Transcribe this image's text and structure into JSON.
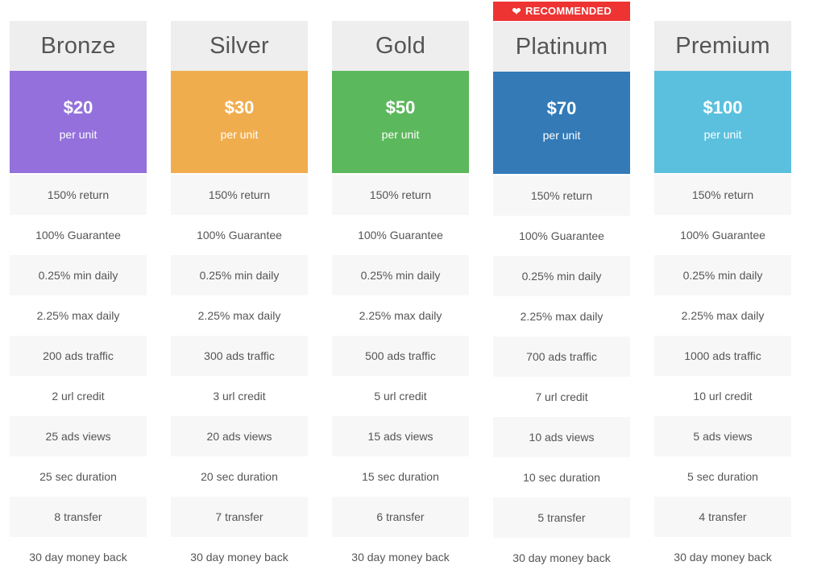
{
  "badge": {
    "icon": "heart-icon",
    "label": "RECOMMENDED"
  },
  "colors": {
    "header_bg": "#eeeeee",
    "badge": "#ee3333",
    "bronze": "#9370db",
    "silver": "#f0ad4e",
    "gold": "#5cb85c",
    "platinum": "#337ab7",
    "premium": "#5bc0de"
  },
  "plans": [
    {
      "name": "Bronze",
      "price": "$20",
      "unit": "per unit",
      "features": [
        "150% return",
        "100% Guarantee",
        "0.25% min daily",
        "2.25% max daily",
        "200 ads traffic",
        "2 url credit",
        "25 ads views",
        "25 sec duration",
        "8 transfer",
        "30 day money back"
      ]
    },
    {
      "name": "Silver",
      "price": "$30",
      "unit": "per unit",
      "features": [
        "150% return",
        "100% Guarantee",
        "0.25% min daily",
        "2.25% max daily",
        "300 ads traffic",
        "3 url credit",
        "20 ads views",
        "20 sec duration",
        "7 transfer",
        "30 day money back"
      ]
    },
    {
      "name": "Gold",
      "price": "$50",
      "unit": "per unit",
      "features": [
        "150% return",
        "100% Guarantee",
        "0.25% min daily",
        "2.25% max daily",
        "500 ads traffic",
        "5 url credit",
        "15 ads views",
        "15 sec duration",
        "6 transfer",
        "30 day money back"
      ]
    },
    {
      "name": "Platinum",
      "price": "$70",
      "unit": "per unit",
      "features": [
        "150% return",
        "100% Guarantee",
        "0.25% min daily",
        "2.25% max daily",
        "700 ads traffic",
        "7 url credit",
        "10 ads views",
        "10 sec duration",
        "5 transfer",
        "30 day money back"
      ]
    },
    {
      "name": "Premium",
      "price": "$100",
      "unit": "per unit",
      "features": [
        "150% return",
        "100% Guarantee",
        "0.25% min daily",
        "2.25% max daily",
        "1000 ads traffic",
        "10 url credit",
        "5 ads views",
        "5 sec duration",
        "4 transfer",
        "30 day money back"
      ]
    }
  ]
}
